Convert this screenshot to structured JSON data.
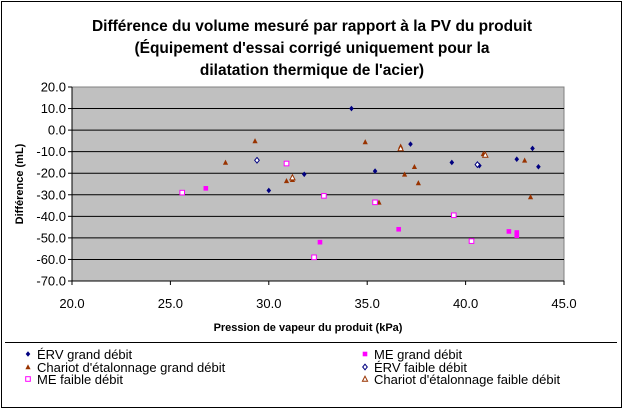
{
  "chart_data": {
    "type": "scatter",
    "title_lines": [
      "Différence du volume mesuré par rapport à la PV du produit",
      "(Équipement d'essai corrigé uniquement pour la",
      "dilatation thermique de l'acier)"
    ],
    "xlabel": "Pression de vapeur du produit (kPa)",
    "ylabel": "Différence (mL)",
    "xlim": [
      20,
      45
    ],
    "ylim": [
      -70,
      20
    ],
    "xticks": [
      "20.0",
      "25.0",
      "30.0",
      "35.0",
      "40.0",
      "45.0"
    ],
    "yticks": [
      "20.0",
      "10.0",
      "0.0",
      "-10.0",
      "-20.0",
      "-30.0",
      "-40.0",
      "-50.0",
      "-60.0",
      "-70.0"
    ],
    "grid": "horizontal",
    "plot_background": "#c0c0c0",
    "legend_position": "bottom",
    "series": [
      {
        "name": "ÉRV grand débit",
        "marker": "diamond-filled",
        "color": "#000080",
        "points": [
          [
            30.0,
            -28
          ],
          [
            31.8,
            -20.5
          ],
          [
            34.2,
            10
          ],
          [
            35.4,
            -19
          ],
          [
            37.2,
            -6.5
          ],
          [
            39.3,
            -15
          ],
          [
            40.7,
            -16.5
          ],
          [
            42.6,
            -13.5
          ],
          [
            43.4,
            -8.5
          ],
          [
            43.7,
            -17
          ]
        ]
      },
      {
        "name": "ME grand débit",
        "marker": "square-filled",
        "color": "#ff00ff",
        "points": [
          [
            26.8,
            -27
          ],
          [
            32.6,
            -52
          ],
          [
            36.6,
            -46
          ],
          [
            42.2,
            -47
          ],
          [
            42.6,
            -49
          ],
          [
            42.6,
            -47.5
          ]
        ]
      },
      {
        "name": "Chariot d'étalonnage grand débit",
        "marker": "triangle-filled",
        "color": "#993300",
        "points": [
          [
            27.8,
            -15
          ],
          [
            29.3,
            -5
          ],
          [
            30.9,
            -23.5
          ],
          [
            31.2,
            -23
          ],
          [
            34.9,
            -5.5
          ],
          [
            35.6,
            -33.5
          ],
          [
            36.7,
            -7.5
          ],
          [
            36.9,
            -20.5
          ],
          [
            37.4,
            -17
          ],
          [
            37.6,
            -24.5
          ],
          [
            40.9,
            -11
          ],
          [
            43.0,
            -14
          ],
          [
            43.3,
            -31
          ]
        ]
      },
      {
        "name": "ÉRV faible débit",
        "marker": "diamond-open",
        "color": "#000080",
        "points": [
          [
            29.4,
            -14
          ],
          [
            40.6,
            -16
          ]
        ]
      },
      {
        "name": "ME faible débit",
        "marker": "square-open",
        "color": "#ff00ff",
        "points": [
          [
            25.6,
            -29
          ],
          [
            30.9,
            -15.5
          ],
          [
            32.3,
            -59
          ],
          [
            32.8,
            -30.5
          ],
          [
            35.4,
            -33.5
          ],
          [
            39.4,
            -39.5
          ],
          [
            40.3,
            -51.5
          ]
        ]
      },
      {
        "name": "Chariot d'étalonnage faible débit",
        "marker": "triangle-open",
        "color": "#993300",
        "points": [
          [
            31.2,
            -22
          ],
          [
            36.7,
            -8.5
          ],
          [
            41.0,
            -11.5
          ]
        ]
      }
    ]
  }
}
